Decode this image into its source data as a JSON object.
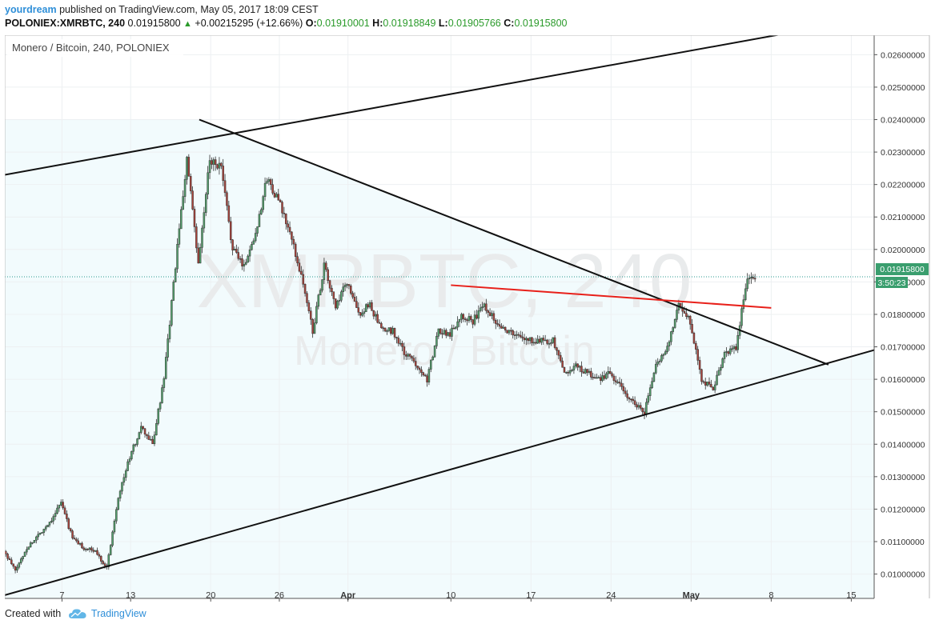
{
  "header": {
    "author": "yourdream",
    "published": "published on TradingView.com, May 05, 2017 18:09 CEST",
    "symbol_line": "POLONIEX:XMRBTC, 240",
    "last": "0.01915800",
    "change": "+0.00215295 (+12.66%)",
    "o_label": "O:",
    "o": "0.01910001",
    "h_label": "H:",
    "h": "0.01918849",
    "l_label": "L:",
    "l": "0.01905766",
    "c_label": "C:",
    "c": "0.01915800"
  },
  "watermark": {
    "big": "XMRBTC, 240",
    "small": "Monero / Bitcoin"
  },
  "footer": {
    "created": "Created with",
    "brand": "TradingView"
  },
  "colors": {
    "up": "#53a06c",
    "down": "#a8423a",
    "accent": "#2f8fd8",
    "fill": "#f2fbfd",
    "redline": "#e8201a"
  },
  "chart_data": {
    "type": "candlestick",
    "title": "Monero / Bitcoin, 240, POLONIEX",
    "x_type": "date",
    "x_range": [
      "2017-03-02",
      "2017-05-17"
    ],
    "y_range": [
      0.00925,
      0.0266
    ],
    "y_ticks": [
      "0.02600000",
      "0.02500000",
      "0.02400000",
      "0.02300000",
      "0.02200000",
      "0.02100000",
      "0.02000000",
      "0.01900000",
      "0.01800000",
      "0.01700000",
      "0.01600000",
      "0.01500000",
      "0.01400000",
      "0.01300000",
      "0.01200000",
      "0.01100000",
      "0.01000000"
    ],
    "x_ticks": [
      {
        "label": "7",
        "date": "2017-03-07"
      },
      {
        "label": "13",
        "date": "2017-03-13"
      },
      {
        "label": "20",
        "date": "2017-03-20"
      },
      {
        "label": "26",
        "date": "2017-03-26"
      },
      {
        "label": "Apr",
        "date": "2017-04-01"
      },
      {
        "label": "10",
        "date": "2017-04-10"
      },
      {
        "label": "17",
        "date": "2017-04-17"
      },
      {
        "label": "24",
        "date": "2017-04-24"
      },
      {
        "label": "May",
        "date": "2017-05-01"
      },
      {
        "label": "8",
        "date": "2017-05-08"
      },
      {
        "label": "15",
        "date": "2017-05-15"
      }
    ],
    "price_label": {
      "value": "0.01915800",
      "countdown": "3:50:23"
    },
    "anchors": [
      [
        "2017-03-02",
        0.0107
      ],
      [
        "2017-03-03",
        0.0101
      ],
      [
        "2017-03-04",
        0.0108
      ],
      [
        "2017-03-06",
        0.0116
      ],
      [
        "2017-03-07",
        0.0122
      ],
      [
        "2017-03-08",
        0.0111
      ],
      [
        "2017-03-09",
        0.0108
      ],
      [
        "2017-03-10",
        0.0107
      ],
      [
        "2017-03-11",
        0.0102
      ],
      [
        "2017-03-12",
        0.0124
      ],
      [
        "2017-03-13",
        0.0136
      ],
      [
        "2017-03-14",
        0.0145
      ],
      [
        "2017-03-15",
        0.014
      ],
      [
        "2017-03-16",
        0.016
      ],
      [
        "2017-03-17",
        0.0195
      ],
      [
        "2017-03-18",
        0.0228
      ],
      [
        "2017-03-19",
        0.0195
      ],
      [
        "2017-03-20",
        0.0228
      ],
      [
        "2017-03-21",
        0.0225
      ],
      [
        "2017-03-22",
        0.02
      ],
      [
        "2017-03-23",
        0.0195
      ],
      [
        "2017-03-24",
        0.0205
      ],
      [
        "2017-03-25",
        0.0222
      ],
      [
        "2017-03-26",
        0.0215
      ],
      [
        "2017-03-27",
        0.0205
      ],
      [
        "2017-03-28",
        0.0192
      ],
      [
        "2017-03-29",
        0.0175
      ],
      [
        "2017-03-30",
        0.0195
      ],
      [
        "2017-03-31",
        0.0182
      ],
      [
        "2017-04-01",
        0.019
      ],
      [
        "2017-04-02",
        0.018
      ],
      [
        "2017-04-03",
        0.0183
      ],
      [
        "2017-04-04",
        0.0175
      ],
      [
        "2017-04-05",
        0.0175
      ],
      [
        "2017-04-06",
        0.0168
      ],
      [
        "2017-04-07",
        0.0165
      ],
      [
        "2017-04-08",
        0.016
      ],
      [
        "2017-04-09",
        0.0175
      ],
      [
        "2017-04-10",
        0.0174
      ],
      [
        "2017-04-11",
        0.018
      ],
      [
        "2017-04-12",
        0.0178
      ],
      [
        "2017-04-13",
        0.0183
      ],
      [
        "2017-04-14",
        0.0178
      ],
      [
        "2017-04-15",
        0.0175
      ],
      [
        "2017-04-16",
        0.0173
      ],
      [
        "2017-04-17",
        0.0172
      ],
      [
        "2017-04-18",
        0.0172
      ],
      [
        "2017-04-19",
        0.0172
      ],
      [
        "2017-04-20",
        0.0162
      ],
      [
        "2017-04-21",
        0.0164
      ],
      [
        "2017-04-22",
        0.0162
      ],
      [
        "2017-04-23",
        0.016
      ],
      [
        "2017-04-24",
        0.0162
      ],
      [
        "2017-04-25",
        0.0157
      ],
      [
        "2017-04-26",
        0.0153
      ],
      [
        "2017-04-27",
        0.015
      ],
      [
        "2017-04-28",
        0.0164
      ],
      [
        "2017-04-29",
        0.017
      ],
      [
        "2017-04-30",
        0.0183
      ],
      [
        "2017-05-01",
        0.0178
      ],
      [
        "2017-05-02",
        0.016
      ],
      [
        "2017-05-03",
        0.0157
      ],
      [
        "2017-05-04",
        0.0168
      ],
      [
        "2017-05-05",
        0.017
      ],
      [
        "2017-05-06",
        0.0192
      ]
    ],
    "trendlines": [
      {
        "name": "upper-resistance",
        "color": "#111111",
        "from": [
          "2017-03-02",
          0.0223
        ],
        "to": [
          "2017-05-10",
          0.0267
        ]
      },
      {
        "name": "triangle-upper",
        "color": "#111111",
        "from": [
          "2017-03-19",
          0.024
        ],
        "to": [
          "2017-05-13",
          0.01645
        ]
      },
      {
        "name": "triangle-lower",
        "color": "#111111",
        "from": [
          "2017-03-02",
          0.00935
        ],
        "to": [
          "2017-05-17",
          0.0169
        ]
      },
      {
        "name": "neckline",
        "color": "#e8201a",
        "from": [
          "2017-04-10",
          0.0189
        ],
        "to": [
          "2017-05-08",
          0.0182
        ]
      }
    ]
  }
}
